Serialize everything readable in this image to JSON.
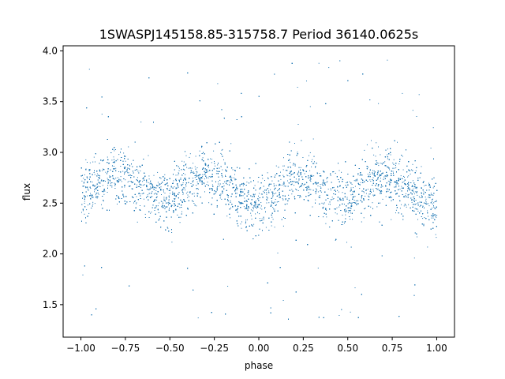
{
  "chart_data": {
    "type": "scatter",
    "title": "1SWASPJ145158.85-315758.7 Period 36140.0625s",
    "xlabel": "phase",
    "ylabel": "flux",
    "xlim": [
      -1.1,
      1.1
    ],
    "ylim": [
      1.18,
      4.05
    ],
    "xticks": [
      -1.0,
      -0.75,
      -0.5,
      -0.25,
      0.0,
      0.25,
      0.5,
      0.75,
      1.0
    ],
    "xtick_labels": [
      "−1.00",
      "−0.75",
      "−0.50",
      "−0.25",
      "0.00",
      "0.25",
      "0.50",
      "0.75",
      "1.00"
    ],
    "yticks": [
      1.5,
      2.0,
      2.5,
      3.0,
      3.5,
      4.0
    ],
    "ytick_labels": [
      "1.5",
      "2.0",
      "2.5",
      "3.0",
      "3.5",
      "4.0"
    ],
    "grid": false,
    "legend": "none",
    "marker_color": "#1f77b4",
    "series": [
      {
        "phase": [
          -1.0,
          -0.9,
          -0.8,
          -0.7,
          -0.6,
          -0.5,
          -0.4,
          -0.3,
          -0.2,
          -0.1,
          0.0,
          0.1,
          0.2,
          0.3,
          0.4,
          0.5,
          0.6,
          0.7,
          0.8,
          0.9,
          1.0
        ],
        "flux_median": [
          2.6,
          2.72,
          2.8,
          2.72,
          2.58,
          2.55,
          2.68,
          2.8,
          2.72,
          2.55,
          2.47,
          2.62,
          2.78,
          2.72,
          2.57,
          2.55,
          2.68,
          2.78,
          2.72,
          2.55,
          2.47
        ],
        "scatter_halfwidth": 0.25,
        "outlier_range": [
          1.33,
          3.95
        ]
      }
    ]
  }
}
